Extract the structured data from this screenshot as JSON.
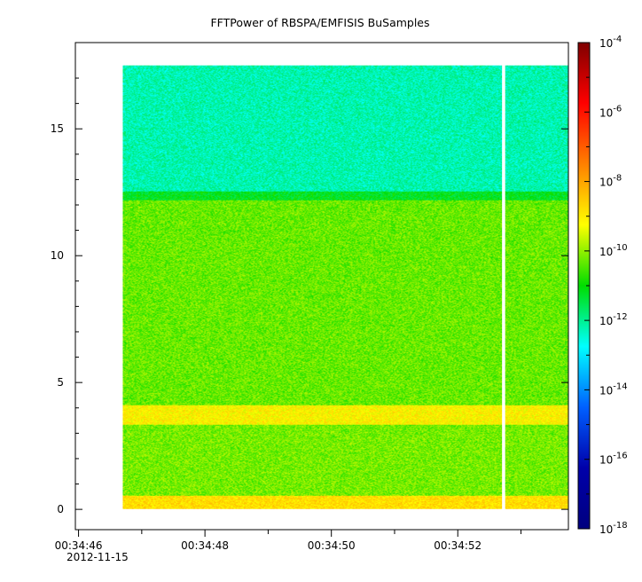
{
  "chart_data": {
    "type": "heatmap",
    "title": "FFTPower of RBSPA/EMFISIS  BuSamples",
    "xlabel": "",
    "ylabel": "",
    "x_tick_labels": [
      "00:34:46",
      "00:34:48",
      "00:34:50",
      "00:34:52"
    ],
    "x_date_label": "2012-11-15",
    "x_range_seconds": [
      45.95,
      53.75
    ],
    "x_major_ticks_seconds": [
      46,
      48,
      50,
      52
    ],
    "x_minor_ticks_seconds": [
      47,
      49,
      51,
      53
    ],
    "y_range": [
      -0.8,
      18.4
    ],
    "y_ticks": [
      0,
      5,
      10,
      15
    ],
    "y_tick_labels": [
      "0",
      "5",
      "10",
      "15"
    ],
    "data_extent": {
      "x_start_seconds": 46.7,
      "x_end_seconds": 53.75,
      "y_top": 17.5,
      "y_bottom": 0.0
    },
    "data_gap_seconds": [
      52.7,
      52.75
    ],
    "z_scale": "log",
    "z_range": [
      1e-18,
      0.0001
    ],
    "colorbar_ticks": [
      {
        "base": "10",
        "exp": "-4",
        "value": 0.0001
      },
      {
        "base": "10",
        "exp": "-6",
        "value": 1e-06
      },
      {
        "base": "10",
        "exp": "-8",
        "value": 1e-08
      },
      {
        "base": "10",
        "exp": "-10",
        "value": 1e-10
      },
      {
        "base": "10",
        "exp": "-12",
        "value": 1e-12
      },
      {
        "base": "10",
        "exp": "-14",
        "value": 1e-14
      },
      {
        "base": "10",
        "exp": "-16",
        "value": 1e-16
      },
      {
        "base": "10",
        "exp": "-18",
        "value": 1e-18
      }
    ],
    "colorbar_colors": [
      "#7f0000",
      "#ff0000",
      "#ff8000",
      "#ffff00",
      "#00dd00",
      "#00ffff",
      "#0060ff",
      "#0000aa",
      "#00007f"
    ],
    "bands": [
      {
        "y_from": 0.0,
        "y_to": 0.55,
        "log_power": -8.8
      },
      {
        "y_from": 0.55,
        "y_to": 3.35,
        "log_power": -10.2
      },
      {
        "y_from": 3.35,
        "y_to": 4.1,
        "log_power": -9.1
      },
      {
        "y_from": 4.1,
        "y_to": 12.2,
        "log_power": -10.3
      },
      {
        "y_from": 12.2,
        "y_to": 12.55,
        "log_power": -11.2
      },
      {
        "y_from": 12.55,
        "y_to": 17.5,
        "log_power": -12.2
      }
    ]
  }
}
